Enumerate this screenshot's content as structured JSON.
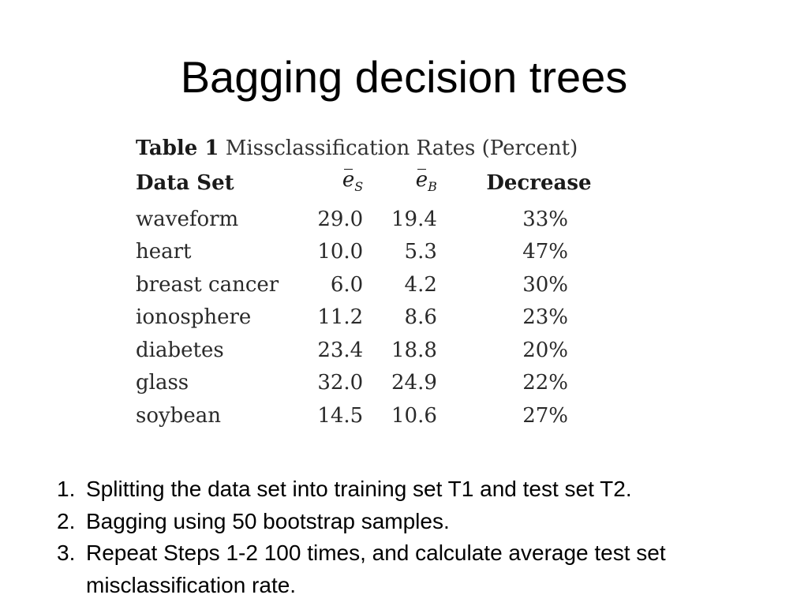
{
  "slide": {
    "title": "Bagging decision trees"
  },
  "table": {
    "caption_number": "Table 1",
    "caption_text": "Missclassification Rates (Percent)",
    "headers": {
      "data_set": "Data Set",
      "es_symbol": "e",
      "es_sub": "S",
      "eb_symbol": "e",
      "eb_sub": "B",
      "decrease": "Decrease"
    },
    "rows": [
      {
        "name": "waveform",
        "es": "29.0",
        "eb": "19.4",
        "decrease": "33%"
      },
      {
        "name": "heart",
        "es": "10.0",
        "eb": "5.3",
        "decrease": "47%"
      },
      {
        "name": "breast cancer",
        "es": "6.0",
        "eb": "4.2",
        "decrease": "30%"
      },
      {
        "name": "ionosphere",
        "es": "11.2",
        "eb": "8.6",
        "decrease": "23%"
      },
      {
        "name": "diabetes",
        "es": "23.4",
        "eb": "18.8",
        "decrease": "20%"
      },
      {
        "name": "glass",
        "es": "32.0",
        "eb": "24.9",
        "decrease": "22%"
      },
      {
        "name": "soybean",
        "es": "14.5",
        "eb": "10.6",
        "decrease": "27%"
      }
    ]
  },
  "steps": [
    {
      "num": "1.",
      "text": "Splitting the data set into training set T1 and test set T2."
    },
    {
      "num": "2.",
      "text": "Bagging using 50 bootstrap samples."
    },
    {
      "num": "3.",
      "text": "Repeat Steps 1-2 100 times, and calculate average test set misclassification rate."
    }
  ]
}
